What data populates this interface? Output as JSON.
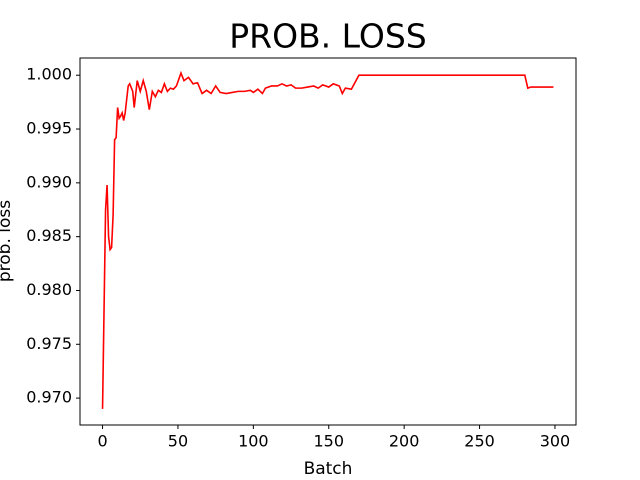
{
  "chart_data": {
    "type": "line",
    "title": "PROB. LOSS",
    "x_label": "Batch",
    "y_label": "prob. loss",
    "series": [
      {
        "name": "prob. loss",
        "color": "#ff0000",
        "x": [
          0,
          2,
          3,
          4,
          5,
          6,
          7,
          8,
          9,
          10,
          11,
          12,
          13,
          14,
          15,
          17,
          18,
          20,
          21,
          23,
          25,
          27,
          29,
          31,
          33,
          35,
          37,
          39,
          41,
          43,
          45,
          47,
          49,
          52,
          54,
          57,
          60,
          63,
          66,
          69,
          72,
          75,
          78,
          82,
          86,
          90,
          94,
          98,
          100,
          103,
          106,
          108,
          112,
          116,
          119,
          122,
          125,
          128,
          132,
          136,
          140,
          143,
          146,
          150,
          153,
          157,
          159,
          161,
          165,
          170,
          280,
          282,
          284,
          299
        ],
        "values": [
          0.969,
          0.9875,
          0.9898,
          0.985,
          0.9838,
          0.984,
          0.987,
          0.994,
          0.9942,
          0.997,
          0.996,
          0.9962,
          0.9965,
          0.9958,
          0.9965,
          0.999,
          0.9992,
          0.9985,
          0.997,
          0.9995,
          0.9985,
          0.9995,
          0.9985,
          0.9968,
          0.9985,
          0.998,
          0.9986,
          0.9984,
          0.9992,
          0.9985,
          0.9988,
          0.9987,
          0.999,
          1.0002,
          0.9995,
          0.9998,
          0.9992,
          0.9993,
          0.9983,
          0.9986,
          0.9983,
          0.999,
          0.9984,
          0.9983,
          0.9984,
          0.9985,
          0.9985,
          0.9986,
          0.9984,
          0.9987,
          0.9983,
          0.9988,
          0.999,
          0.999,
          0.9992,
          0.999,
          0.9991,
          0.9988,
          0.9988,
          0.9989,
          0.999,
          0.9988,
          0.9991,
          0.9989,
          0.9992,
          0.999,
          0.9983,
          0.9988,
          0.9987,
          1.0,
          1.0,
          0.9988,
          0.9989,
          0.9989
        ]
      }
    ],
    "xlim": [
      -14.95,
      313.95
    ],
    "xticks": [
      0,
      50,
      100,
      150,
      200,
      250,
      300
    ],
    "ylim": [
      0.9675,
      1.0016
    ],
    "yticks": [
      {
        "value": 0.97,
        "label": "0.970"
      },
      0.975,
      {
        "value": 0.98,
        "label": "0.980"
      },
      0.985,
      {
        "value": 0.99,
        "label": "0.990"
      },
      0.995,
      {
        "value": 1.0,
        "label": "1.000"
      }
    ]
  }
}
